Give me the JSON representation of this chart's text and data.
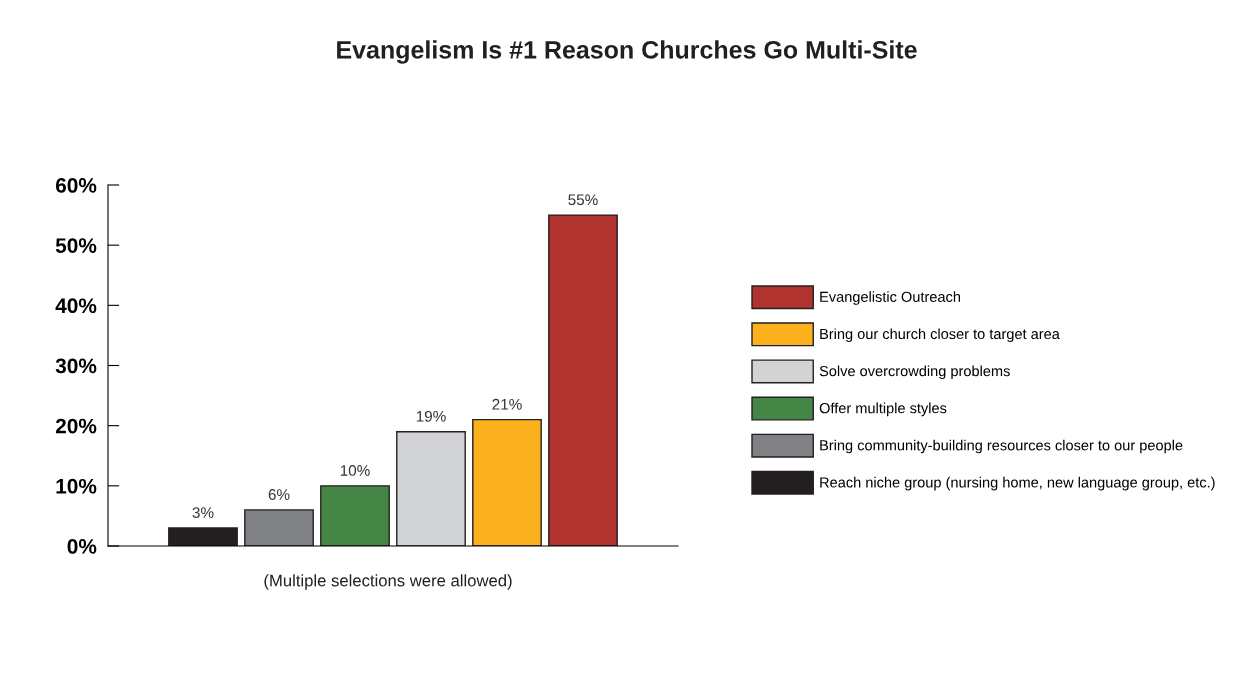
{
  "chart_data": {
    "type": "bar",
    "title": "Evangelism Is #1 Reason Churches Go Multi-Site",
    "categories": [
      null,
      null,
      null,
      null,
      null,
      null
    ],
    "series": [
      {
        "name": "Evangelistic Outreach",
        "color": "#b1332f",
        "values": [
          null,
          null,
          null,
          null,
          null,
          55
        ],
        "value_labels": [
          null,
          null,
          null,
          null,
          null,
          "55%"
        ]
      },
      {
        "name": "Bring our church closer to target area",
        "color": "#fbb01e",
        "values": [
          null,
          null,
          null,
          null,
          21,
          null
        ],
        "value_labels": [
          null,
          null,
          null,
          null,
          "21%",
          null
        ]
      },
      {
        "name": "Solve overcrowding problems",
        "color": "#d2d3d5",
        "values": [
          null,
          null,
          null,
          19,
          null,
          null
        ],
        "value_labels": [
          null,
          null,
          null,
          "19%",
          null,
          null
        ]
      },
      {
        "name": "Offer multiple styles",
        "color": "#458647",
        "values": [
          null,
          null,
          10,
          null,
          null,
          null
        ],
        "value_labels": [
          null,
          null,
          "10%",
          null,
          null,
          null
        ]
      },
      {
        "name": "Bring community-building resources closer to our people",
        "color": "#808184",
        "values": [
          null,
          6,
          null,
          null,
          null,
          null
        ],
        "value_labels": [
          null,
          "6%",
          null,
          null,
          null,
          null
        ]
      },
      {
        "name": "Reach niche group (nursing home, new language group, etc.)",
        "color": "#231f20",
        "values": [
          3,
          null,
          null,
          null,
          null,
          null
        ],
        "value_labels": [
          "3%",
          null,
          null,
          null,
          null,
          null
        ]
      }
    ],
    "ylim": [
      0,
      60
    ],
    "yticks": [
      {
        "value": 0,
        "label": "0%"
      },
      {
        "value": 10,
        "label": "10%"
      },
      {
        "value": 20,
        "label": "20%"
      },
      {
        "value": 30,
        "label": "30%"
      },
      {
        "value": 40,
        "label": "40%"
      },
      {
        "value": 50,
        "label": "50%"
      },
      {
        "value": 60,
        "label": "60%"
      }
    ],
    "annotations": [
      "(Multiple selections were allowed)"
    ],
    "grid": false,
    "legend": "right"
  }
}
